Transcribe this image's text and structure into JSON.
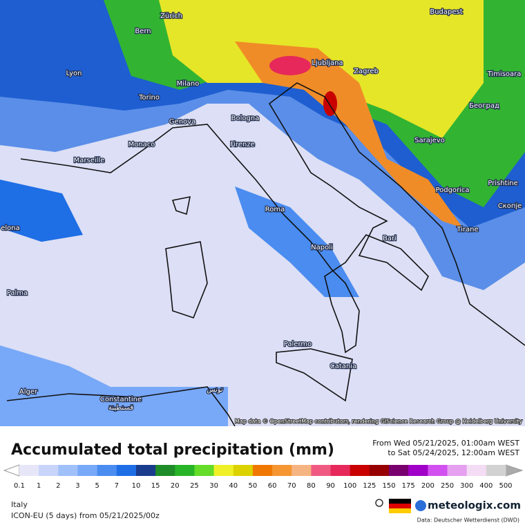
{
  "map": {
    "cities": [
      "Zürich",
      "Bern",
      "Lyon",
      "Milano",
      "Torino",
      "Genova",
      "Monaco",
      "Marseille",
      "Bologna",
      "Firenze",
      "Roma",
      "Napoli",
      "Bari",
      "Palermo",
      "Catania",
      "Ljubljana",
      "Zagreb",
      "Budapest",
      "Timisoara",
      "Београд",
      "Sarajevo",
      "Podgorica",
      "Prishtine",
      "Скопје",
      "Tirane",
      "Palma",
      "Alger",
      "Constantine",
      "قسنطينة",
      "تونس",
      "elona"
    ],
    "attribution": "Map data © OpenStreetMap contributors, rendering GIScience Research Group @ Heidelberg University"
  },
  "title": "Accumulated total precipitation (mm)",
  "period": {
    "from": "From Wed 05/21/2025, 01:00am WEST",
    "to": "to Sat 05/24/2025, 12:00am WEST"
  },
  "legend": {
    "values": [
      0.1,
      1,
      2,
      3,
      5,
      7,
      10,
      15,
      20,
      25,
      30,
      40,
      50,
      60,
      70,
      80,
      90,
      100,
      125,
      150,
      175,
      200,
      250,
      300,
      400,
      500
    ],
    "colors": [
      "#e6e6f8",
      "#c8d4fa",
      "#a0c0fa",
      "#78a8f8",
      "#4a8cf0",
      "#1e6ee6",
      "#1a3c8c",
      "#1e8c28",
      "#28b428",
      "#64dc28",
      "#f0f028",
      "#dcd200",
      "#f07800",
      "#f59632",
      "#f5b482",
      "#f05a82",
      "#e6285a",
      "#c80000",
      "#960000",
      "#78006e",
      "#a000c8",
      "#d250f0",
      "#e6a0f0",
      "#f5dcf5",
      "#d2d2d2"
    ]
  },
  "region": "Italy",
  "model": "ICON-EU (5 days) from 05/21/2025/00z",
  "brand": "meteologix.com",
  "credit": "Data: Deutscher Wetterdienst (DWD)"
}
